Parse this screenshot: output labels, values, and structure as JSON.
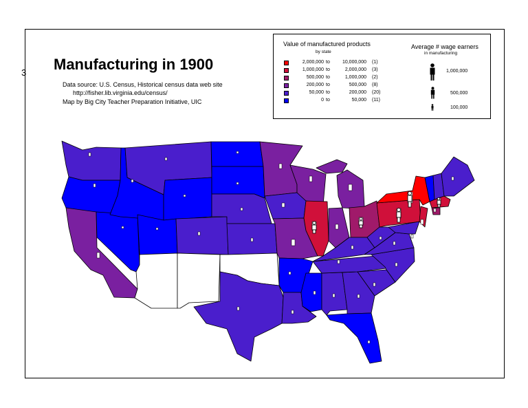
{
  "title": "Manufacturing in 1900",
  "source": {
    "line1": "Data source:  U.S. Census, Historical census data web site",
    "line2": "http://fisher.lib.virginia.edu/census/",
    "line3": "Map by Big City Teacher Preparation Initiative, UIC"
  },
  "legend": {
    "value_title": "Value of manufactured products",
    "value_subtitle": "by state",
    "to_word": "to",
    "classes": [
      {
        "low": "2,000,000",
        "high": "10,000,000",
        "count": "(1)",
        "color": "#ff0000"
      },
      {
        "low": "1,000,000",
        "high": "2,000,000",
        "count": "(3)",
        "color": "#d0103a"
      },
      {
        "low": "500,000",
        "high": "1,000,000",
        "count": "(2)",
        "color": "#a01a6a"
      },
      {
        "low": "200,000",
        "high": "500,000",
        "count": "(8)",
        "color": "#7a20a0"
      },
      {
        "low": "50,000",
        "high": "200,000",
        "count": "(20)",
        "color": "#4a1ecc"
      },
      {
        "low": "0",
        "high": "50,000",
        "count": "(11)",
        "color": "#0000ff"
      }
    ],
    "wage_title": "Average # wage earners",
    "wage_subtitle": "in manufacturing",
    "wage_values": [
      "1,000,000",
      "500,000",
      "100,000"
    ]
  },
  "left_glyph": "3"
}
